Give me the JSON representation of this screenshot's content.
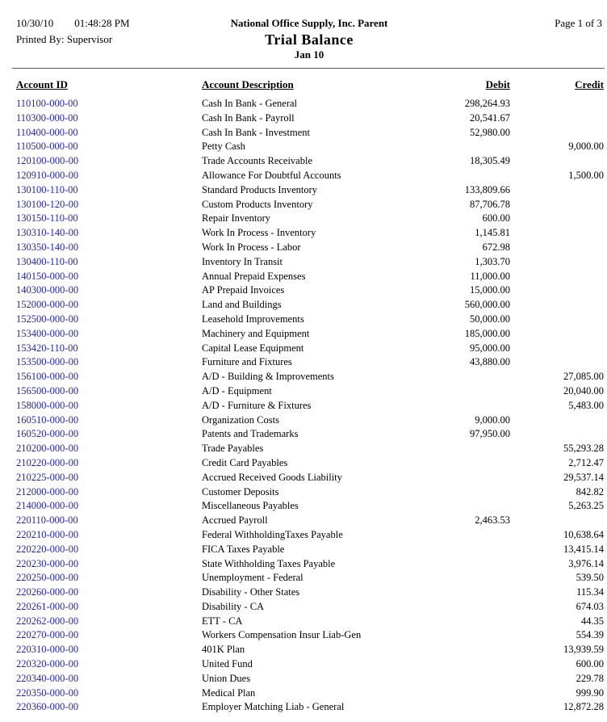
{
  "report": {
    "date": "10/30/10",
    "time": "01:48:28 PM",
    "printed_by_label": "Printed By:",
    "printed_by": "Supervisor",
    "company": "National Office Supply, Inc. Parent",
    "title": "Trial Balance",
    "period": "Jan 10",
    "page": "Page 1 of 3"
  },
  "colors": {
    "account_link_blue": "#2222cc",
    "divider_gray": "#5a5a5a"
  },
  "table": {
    "columns": {
      "account_id": "Account ID",
      "description": "Account Description",
      "debit": "Debit",
      "credit": "Credit"
    },
    "rows": [
      {
        "id": "110100-000-00",
        "description": "Cash In Bank - General",
        "debit": "298,264.93",
        "credit": ""
      },
      {
        "id": "110300-000-00",
        "description": "Cash In Bank - Payroll",
        "debit": "20,541.67",
        "credit": ""
      },
      {
        "id": "110400-000-00",
        "description": "Cash In Bank - Investment",
        "debit": "52,980.00",
        "credit": ""
      },
      {
        "id": "110500-000-00",
        "description": "Petty Cash",
        "debit": "",
        "credit": "9,000.00"
      },
      {
        "id": "120100-000-00",
        "description": "Trade Accounts Receivable",
        "debit": "18,305.49",
        "credit": ""
      },
      {
        "id": "120910-000-00",
        "description": "Allowance For Doubtful Accounts",
        "debit": "",
        "credit": "1,500.00"
      },
      {
        "id": "130100-110-00",
        "description": "Standard Products Inventory",
        "debit": "133,809.66",
        "credit": ""
      },
      {
        "id": "130100-120-00",
        "description": "Custom Products Inventory",
        "debit": "87,706.78",
        "credit": ""
      },
      {
        "id": "130150-110-00",
        "description": "Repair Inventory",
        "debit": "600.00",
        "credit": ""
      },
      {
        "id": "130310-140-00",
        "description": "Work In Process - Inventory",
        "debit": "1,145.81",
        "credit": ""
      },
      {
        "id": "130350-140-00",
        "description": "Work In Process - Labor",
        "debit": "672.98",
        "credit": ""
      },
      {
        "id": "130400-110-00",
        "description": "Inventory In Transit",
        "debit": "1,303.70",
        "credit": ""
      },
      {
        "id": "140150-000-00",
        "description": "Annual Prepaid Expenses",
        "debit": "11,000.00",
        "credit": ""
      },
      {
        "id": "140300-000-00",
        "description": "AP Prepaid Invoices",
        "debit": "15,000.00",
        "credit": ""
      },
      {
        "id": "152000-000-00",
        "description": "Land and Buildings",
        "debit": "560,000.00",
        "credit": ""
      },
      {
        "id": "152500-000-00",
        "description": "Leasehold Improvements",
        "debit": "50,000.00",
        "credit": ""
      },
      {
        "id": "153400-000-00",
        "description": "Machinery and Equipment",
        "debit": "185,000.00",
        "credit": ""
      },
      {
        "id": "153420-110-00",
        "description": "Capital Lease Equipment",
        "debit": "95,000.00",
        "credit": ""
      },
      {
        "id": "153500-000-00",
        "description": "Furniture and Fixtures",
        "debit": "43,880.00",
        "credit": ""
      },
      {
        "id": "156100-000-00",
        "description": "A/D - Building & Improvements",
        "debit": "",
        "credit": "27,085.00"
      },
      {
        "id": "156500-000-00",
        "description": "A/D - Equipment",
        "debit": "",
        "credit": "20,040.00"
      },
      {
        "id": "158000-000-00",
        "description": "A/D - Furniture & Fixtures",
        "debit": "",
        "credit": "5,483.00"
      },
      {
        "id": "160510-000-00",
        "description": "Organization Costs",
        "debit": "9,000.00",
        "credit": ""
      },
      {
        "id": "160520-000-00",
        "description": "Patents and Trademarks",
        "debit": "97,950.00",
        "credit": ""
      },
      {
        "id": "210200-000-00",
        "description": "Trade Payables",
        "debit": "",
        "credit": "55,293.28"
      },
      {
        "id": "210220-000-00",
        "description": "Credit Card Payables",
        "debit": "",
        "credit": "2,712.47"
      },
      {
        "id": "210225-000-00",
        "description": "Accrued Received Goods Liability",
        "debit": "",
        "credit": "29,537.14"
      },
      {
        "id": "212000-000-00",
        "description": "Customer Deposits",
        "debit": "",
        "credit": "842.82"
      },
      {
        "id": "214000-000-00",
        "description": "Miscellaneous Payables",
        "debit": "",
        "credit": "5,263.25"
      },
      {
        "id": "220110-000-00",
        "description": "Accrued Payroll",
        "debit": "2,463.53",
        "credit": ""
      },
      {
        "id": "220210-000-00",
        "description": "Federal WithholdingTaxes Payable",
        "debit": "",
        "credit": "10,638.64"
      },
      {
        "id": "220220-000-00",
        "description": "FICA Taxes Payable",
        "debit": "",
        "credit": "13,415.14"
      },
      {
        "id": "220230-000-00",
        "description": "State Withholding Taxes Payable",
        "debit": "",
        "credit": "3,976.14"
      },
      {
        "id": "220250-000-00",
        "description": "Unemployment - Federal",
        "debit": "",
        "credit": "539.50"
      },
      {
        "id": "220260-000-00",
        "description": "Disability - Other States",
        "debit": "",
        "credit": "115.34"
      },
      {
        "id": "220261-000-00",
        "description": "Disability - CA",
        "debit": "",
        "credit": "674.03"
      },
      {
        "id": "220262-000-00",
        "description": "ETT - CA",
        "debit": "",
        "credit": "44.35"
      },
      {
        "id": "220270-000-00",
        "description": "Workers Compensation Insur Liab-Gen",
        "debit": "",
        "credit": "554.39"
      },
      {
        "id": "220310-000-00",
        "description": "401K Plan",
        "debit": "",
        "credit": "13,939.59"
      },
      {
        "id": "220320-000-00",
        "description": "United Fund",
        "debit": "",
        "credit": "600.00"
      },
      {
        "id": "220340-000-00",
        "description": "Union Dues",
        "debit": "",
        "credit": "229.78"
      },
      {
        "id": "220350-000-00",
        "description": "Medical Plan",
        "debit": "",
        "credit": "999.90"
      },
      {
        "id": "220360-000-00",
        "description": "Employer Matching Liab - General",
        "debit": "",
        "credit": "12,872.28"
      }
    ]
  }
}
